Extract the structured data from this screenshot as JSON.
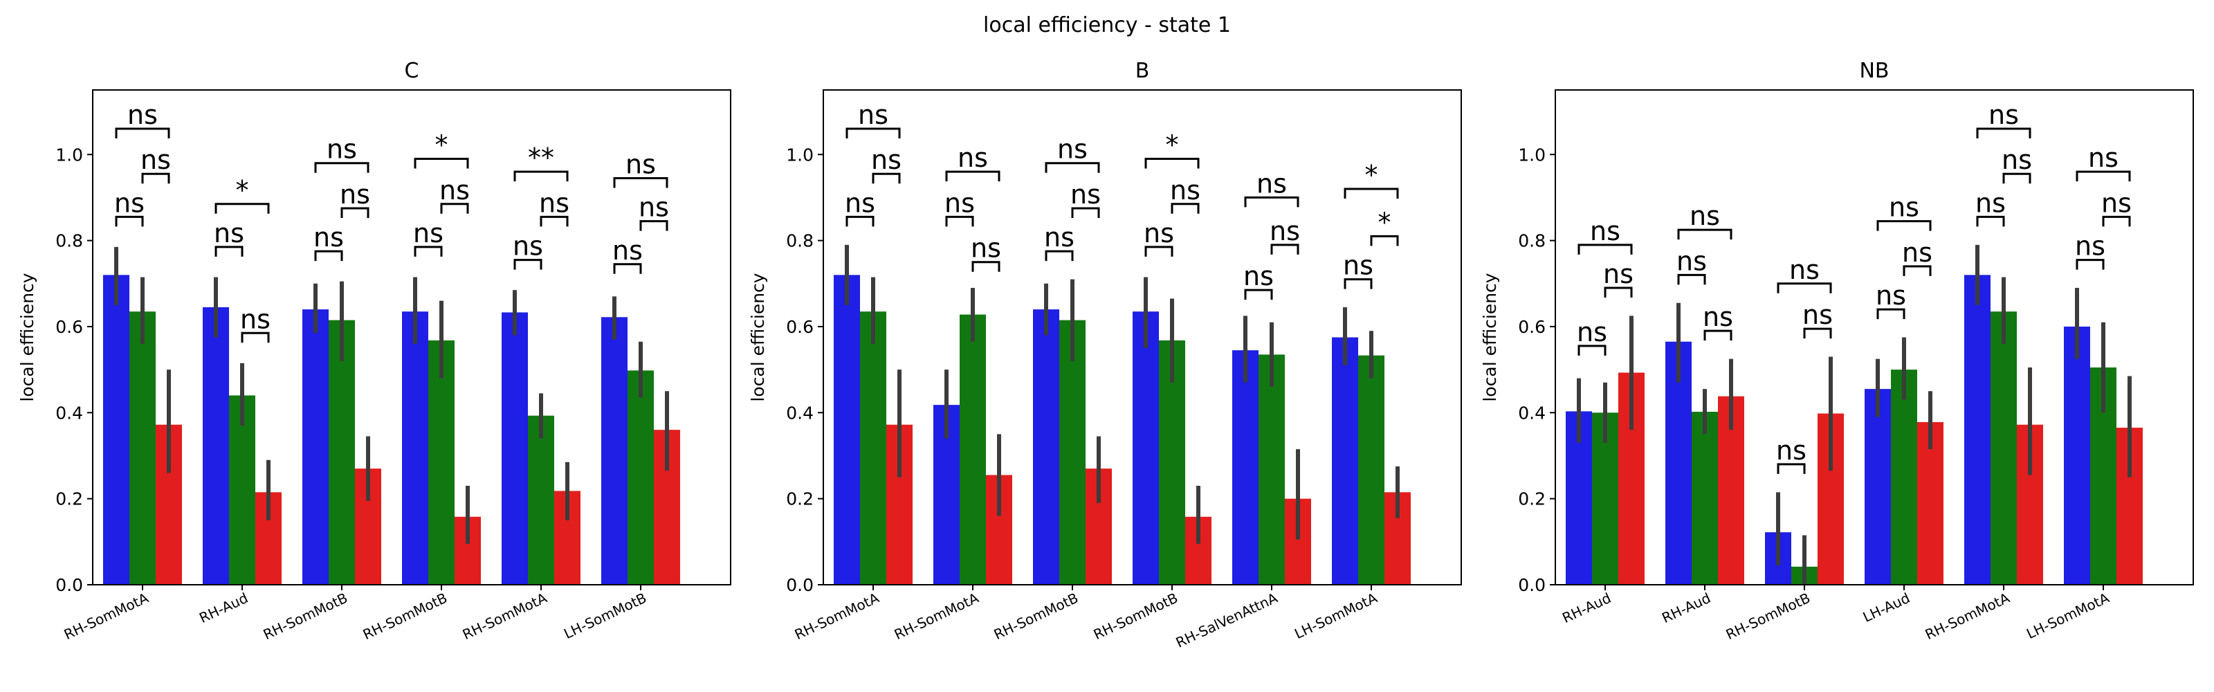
{
  "figure": {
    "suptitle": "local efficiency - state 1"
  },
  "colors": {
    "blue": "#1f1fe6",
    "green": "#117811",
    "red": "#e31e1e",
    "errorbar": "#3c3c3c"
  },
  "chart_data": [
    {
      "type": "bar",
      "title": "C",
      "xlabel": "",
      "ylabel": "local efficiency",
      "ylim": [
        0,
        1.15
      ],
      "yticks": [
        0.0,
        0.2,
        0.4,
        0.6,
        0.8,
        1.0
      ],
      "ytick_labels": [
        "0.0",
        "0.2",
        "0.4",
        "0.6",
        "0.8",
        "1.0"
      ],
      "grid": false,
      "categories": [
        "RH-SomMotA",
        "RH-Aud",
        "RH-SomMotB",
        "RH-SomMotB",
        "RH-SomMotA",
        "LH-SomMotB"
      ],
      "series": [
        {
          "color": "blue",
          "values": [
            0.72,
            0.645,
            0.64,
            0.635,
            0.633,
            0.622
          ],
          "err_low": [
            0.65,
            0.575,
            0.585,
            0.56,
            0.58,
            0.57
          ],
          "err_high": [
            0.785,
            0.715,
            0.7,
            0.715,
            0.685,
            0.67
          ]
        },
        {
          "color": "green",
          "values": [
            0.635,
            0.44,
            0.615,
            0.568,
            0.393,
            0.498
          ],
          "err_low": [
            0.56,
            0.37,
            0.52,
            0.48,
            0.34,
            0.435
          ],
          "err_high": [
            0.715,
            0.515,
            0.705,
            0.66,
            0.445,
            0.565
          ]
        },
        {
          "color": "red",
          "values": [
            0.372,
            0.215,
            0.27,
            0.158,
            0.218,
            0.36
          ],
          "err_low": [
            0.26,
            0.15,
            0.195,
            0.095,
            0.15,
            0.265
          ],
          "err_high": [
            0.5,
            0.29,
            0.345,
            0.23,
            0.285,
            0.45
          ]
        }
      ],
      "annotations": [
        {
          "category": 0,
          "from": 0,
          "to": 2,
          "label": "ns",
          "y": 1.06
        },
        {
          "category": 0,
          "from": 0,
          "to": 1,
          "label": "ns",
          "y": 0.855
        },
        {
          "category": 0,
          "from": 1,
          "to": 2,
          "label": "ns",
          "y": 0.955
        },
        {
          "category": 1,
          "from": 0,
          "to": 2,
          "label": "*",
          "y": 0.885
        },
        {
          "category": 1,
          "from": 0,
          "to": 1,
          "label": "ns",
          "y": 0.785
        },
        {
          "category": 1,
          "from": 1,
          "to": 2,
          "label": "ns",
          "y": 0.585
        },
        {
          "category": 2,
          "from": 0,
          "to": 2,
          "label": "ns",
          "y": 0.98
        },
        {
          "category": 2,
          "from": 0,
          "to": 1,
          "label": "ns",
          "y": 0.775
        },
        {
          "category": 2,
          "from": 1,
          "to": 2,
          "label": "ns",
          "y": 0.875
        },
        {
          "category": 3,
          "from": 0,
          "to": 2,
          "label": "*",
          "y": 0.99
        },
        {
          "category": 3,
          "from": 0,
          "to": 1,
          "label": "ns",
          "y": 0.785
        },
        {
          "category": 3,
          "from": 1,
          "to": 2,
          "label": "ns",
          "y": 0.885
        },
        {
          "category": 4,
          "from": 0,
          "to": 2,
          "label": "**",
          "y": 0.96
        },
        {
          "category": 4,
          "from": 0,
          "to": 1,
          "label": "ns",
          "y": 0.755
        },
        {
          "category": 4,
          "from": 1,
          "to": 2,
          "label": "ns",
          "y": 0.855
        },
        {
          "category": 5,
          "from": 0,
          "to": 2,
          "label": "ns",
          "y": 0.945
        },
        {
          "category": 5,
          "from": 0,
          "to": 1,
          "label": "ns",
          "y": 0.745
        },
        {
          "category": 5,
          "from": 1,
          "to": 2,
          "label": "ns",
          "y": 0.845
        }
      ]
    },
    {
      "type": "bar",
      "title": "B",
      "xlabel": "",
      "ylabel": "local efficiency",
      "ylim": [
        0,
        1.15
      ],
      "yticks": [
        0.0,
        0.2,
        0.4,
        0.6,
        0.8,
        1.0
      ],
      "ytick_labels": [
        "0.0",
        "0.2",
        "0.4",
        "0.6",
        "0.8",
        "1.0"
      ],
      "grid": false,
      "categories": [
        "RH-SomMotA",
        "RH-SomMotA",
        "RH-SomMotB",
        "RH-SomMotB",
        "RH-SalVenAttnA",
        "LH-SomMotA"
      ],
      "series": [
        {
          "color": "blue",
          "values": [
            0.72,
            0.418,
            0.64,
            0.635,
            0.545,
            0.575
          ],
          "err_low": [
            0.65,
            0.34,
            0.58,
            0.55,
            0.47,
            0.51
          ],
          "err_high": [
            0.79,
            0.5,
            0.7,
            0.715,
            0.625,
            0.645
          ]
        },
        {
          "color": "green",
          "values": [
            0.635,
            0.628,
            0.615,
            0.568,
            0.535,
            0.533
          ],
          "err_low": [
            0.56,
            0.565,
            0.52,
            0.47,
            0.46,
            0.48
          ],
          "err_high": [
            0.715,
            0.69,
            0.71,
            0.665,
            0.61,
            0.59
          ]
        },
        {
          "color": "red",
          "values": [
            0.372,
            0.255,
            0.27,
            0.158,
            0.2,
            0.215
          ],
          "err_low": [
            0.25,
            0.16,
            0.19,
            0.095,
            0.105,
            0.155
          ],
          "err_high": [
            0.5,
            0.35,
            0.345,
            0.23,
            0.315,
            0.275
          ]
        }
      ],
      "annotations": [
        {
          "category": 0,
          "from": 0,
          "to": 2,
          "label": "ns",
          "y": 1.06
        },
        {
          "category": 0,
          "from": 0,
          "to": 1,
          "label": "ns",
          "y": 0.855
        },
        {
          "category": 0,
          "from": 1,
          "to": 2,
          "label": "ns",
          "y": 0.955
        },
        {
          "category": 1,
          "from": 0,
          "to": 2,
          "label": "ns",
          "y": 0.96
        },
        {
          "category": 1,
          "from": 0,
          "to": 1,
          "label": "ns",
          "y": 0.855
        },
        {
          "category": 1,
          "from": 1,
          "to": 2,
          "label": "ns",
          "y": 0.75
        },
        {
          "category": 2,
          "from": 0,
          "to": 2,
          "label": "ns",
          "y": 0.98
        },
        {
          "category": 2,
          "from": 0,
          "to": 1,
          "label": "ns",
          "y": 0.775
        },
        {
          "category": 2,
          "from": 1,
          "to": 2,
          "label": "ns",
          "y": 0.875
        },
        {
          "category": 3,
          "from": 0,
          "to": 2,
          "label": "*",
          "y": 0.99
        },
        {
          "category": 3,
          "from": 0,
          "to": 1,
          "label": "ns",
          "y": 0.785
        },
        {
          "category": 3,
          "from": 1,
          "to": 2,
          "label": "ns",
          "y": 0.885
        },
        {
          "category": 4,
          "from": 0,
          "to": 2,
          "label": "ns",
          "y": 0.9
        },
        {
          "category": 4,
          "from": 0,
          "to": 1,
          "label": "ns",
          "y": 0.685
        },
        {
          "category": 4,
          "from": 1,
          "to": 2,
          "label": "ns",
          "y": 0.79
        },
        {
          "category": 5,
          "from": 0,
          "to": 2,
          "label": "*",
          "y": 0.92
        },
        {
          "category": 5,
          "from": 0,
          "to": 1,
          "label": "ns",
          "y": 0.71
        },
        {
          "category": 5,
          "from": 1,
          "to": 2,
          "label": "*",
          "y": 0.81
        }
      ]
    },
    {
      "type": "bar",
      "title": "NB",
      "xlabel": "",
      "ylabel": "local efficiency",
      "ylim": [
        0,
        1.15
      ],
      "yticks": [
        0.0,
        0.2,
        0.4,
        0.6,
        0.8,
        1.0
      ],
      "ytick_labels": [
        "0.0",
        "0.2",
        "0.4",
        "0.6",
        "0.8",
        "1.0"
      ],
      "grid": false,
      "categories": [
        "RH-Aud",
        "RH-Aud",
        "RH-SomMotB",
        "LH-Aud",
        "RH-SomMotA",
        "LH-SomMotA"
      ],
      "series": [
        {
          "color": "blue",
          "values": [
            0.403,
            0.565,
            0.122,
            0.455,
            0.72,
            0.6
          ],
          "err_low": [
            0.33,
            0.47,
            0.045,
            0.39,
            0.65,
            0.525
          ],
          "err_high": [
            0.48,
            0.655,
            0.215,
            0.525,
            0.79,
            0.69
          ]
        },
        {
          "color": "green",
          "values": [
            0.4,
            0.402,
            0.042,
            0.5,
            0.635,
            0.505
          ],
          "err_low": [
            0.33,
            0.35,
            0.0,
            0.43,
            0.56,
            0.4
          ],
          "err_high": [
            0.47,
            0.455,
            0.115,
            0.575,
            0.715,
            0.61
          ]
        },
        {
          "color": "red",
          "values": [
            0.493,
            0.438,
            0.398,
            0.378,
            0.372,
            0.365
          ],
          "err_low": [
            0.36,
            0.36,
            0.265,
            0.315,
            0.255,
            0.25
          ],
          "err_high": [
            0.625,
            0.525,
            0.53,
            0.45,
            0.505,
            0.485
          ]
        }
      ],
      "annotations": [
        {
          "category": 0,
          "from": 0,
          "to": 2,
          "label": "ns",
          "y": 0.79
        },
        {
          "category": 0,
          "from": 0,
          "to": 1,
          "label": "ns",
          "y": 0.555
        },
        {
          "category": 0,
          "from": 1,
          "to": 2,
          "label": "ns",
          "y": 0.69
        },
        {
          "category": 1,
          "from": 0,
          "to": 2,
          "label": "ns",
          "y": 0.825
        },
        {
          "category": 1,
          "from": 0,
          "to": 1,
          "label": "ns",
          "y": 0.72
        },
        {
          "category": 1,
          "from": 1,
          "to": 2,
          "label": "ns",
          "y": 0.59
        },
        {
          "category": 2,
          "from": 0,
          "to": 2,
          "label": "ns",
          "y": 0.7
        },
        {
          "category": 2,
          "from": 0,
          "to": 1,
          "label": "ns",
          "y": 0.28
        },
        {
          "category": 2,
          "from": 1,
          "to": 2,
          "label": "ns",
          "y": 0.595
        },
        {
          "category": 3,
          "from": 0,
          "to": 2,
          "label": "ns",
          "y": 0.845
        },
        {
          "category": 3,
          "from": 0,
          "to": 1,
          "label": "ns",
          "y": 0.64
        },
        {
          "category": 3,
          "from": 1,
          "to": 2,
          "label": "ns",
          "y": 0.74
        },
        {
          "category": 4,
          "from": 0,
          "to": 2,
          "label": "ns",
          "y": 1.06
        },
        {
          "category": 4,
          "from": 0,
          "to": 1,
          "label": "ns",
          "y": 0.855
        },
        {
          "category": 4,
          "from": 1,
          "to": 2,
          "label": "ns",
          "y": 0.955
        },
        {
          "category": 5,
          "from": 0,
          "to": 2,
          "label": "ns",
          "y": 0.96
        },
        {
          "category": 5,
          "from": 0,
          "to": 1,
          "label": "ns",
          "y": 0.755
        },
        {
          "category": 5,
          "from": 1,
          "to": 2,
          "label": "ns",
          "y": 0.855
        }
      ]
    }
  ]
}
